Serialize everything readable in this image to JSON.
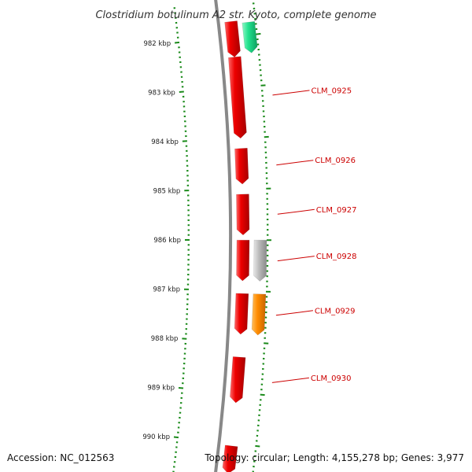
{
  "title": "Clostridium botulinum A2 str. Kyoto, complete genome",
  "accession": "Accession: NC_012563",
  "topology": "Topology: circular; Length: 4,155,278 bp; Genes: 3,977",
  "colors": {
    "backbone": "#888888",
    "tick": "#1a8a1a",
    "label": "#cc0000",
    "gene_red": "#ee0000",
    "gene_green": "#22e28e",
    "gene_gray": "#bbbbbb",
    "gene_orange": "#ff8c00"
  },
  "scale_ticks": [
    {
      "kbp": 982,
      "label": "982 kbp"
    },
    {
      "kbp": 983,
      "label": "983 kbp"
    },
    {
      "kbp": 984,
      "label": "984 kbp"
    },
    {
      "kbp": 985,
      "label": "985 kbp"
    },
    {
      "kbp": 986,
      "label": "986 kbp"
    },
    {
      "kbp": 987,
      "label": "987 kbp"
    },
    {
      "kbp": 988,
      "label": "988 kbp"
    },
    {
      "kbp": 989,
      "label": "989 kbp"
    },
    {
      "kbp": 990,
      "label": "990 kbp"
    }
  ],
  "genes": [
    {
      "label": "",
      "strand": "outer",
      "start_kbp": 981.7,
      "end_kbp": 982.4,
      "color": "gene_red"
    },
    {
      "label": "",
      "strand": "inner",
      "start_kbp": 981.75,
      "end_kbp": 982.35,
      "color": "gene_green"
    },
    {
      "label": "CLM_0925",
      "strand": "outer",
      "start_kbp": 982.4,
      "end_kbp": 984.0,
      "color": "gene_red"
    },
    {
      "label": "CLM_0926",
      "strand": "outer",
      "start_kbp": 984.2,
      "end_kbp": 984.9,
      "color": "gene_red"
    },
    {
      "label": "CLM_0927",
      "strand": "outer",
      "start_kbp": 985.1,
      "end_kbp": 985.9,
      "color": "gene_red"
    },
    {
      "label": "CLM_0928",
      "strand": "outer",
      "start_kbp": 986.0,
      "end_kbp": 986.8,
      "color": "gene_red"
    },
    {
      "label": "",
      "strand": "inner",
      "start_kbp": 986.0,
      "end_kbp": 986.8,
      "color": "gene_gray"
    },
    {
      "label": "CLM_0929",
      "strand": "outer",
      "start_kbp": 987.05,
      "end_kbp": 987.85,
      "color": "gene_red"
    },
    {
      "label": "",
      "strand": "inner",
      "start_kbp": 987.05,
      "end_kbp": 987.85,
      "color": "gene_orange"
    },
    {
      "label": "CLM_0930",
      "strand": "outer",
      "start_kbp": 988.3,
      "end_kbp": 989.2,
      "color": "gene_red"
    },
    {
      "label": "",
      "strand": "outer",
      "start_kbp": 990.05,
      "end_kbp": 990.6,
      "color": "gene_red"
    }
  ]
}
